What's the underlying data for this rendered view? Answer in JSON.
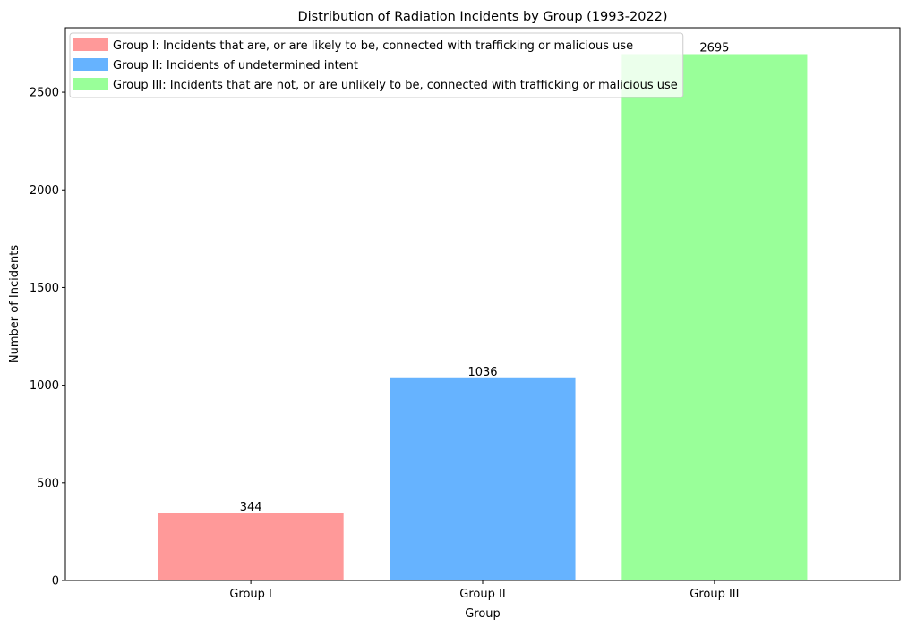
{
  "chart_data": {
    "type": "bar",
    "title": "Distribution of Radiation Incidents by Group (1993-2022)",
    "xlabel": "Group",
    "ylabel": "Number of Incidents",
    "categories": [
      "Group I",
      "Group II",
      "Group III"
    ],
    "values": [
      344,
      1036,
      2695
    ],
    "value_labels": [
      "344",
      "1036",
      "2695"
    ],
    "colors": [
      "#ff9999",
      "#66b3ff",
      "#99ff99"
    ],
    "ylim": [
      0,
      2830
    ],
    "yticks": [
      0,
      500,
      1000,
      1500,
      2000,
      2500
    ],
    "grid": false,
    "legend_position": "top-left",
    "legend": [
      {
        "label": "Group I: Incidents that are, or are likely to be, connected with trafficking or malicious use",
        "color": "#ff9999"
      },
      {
        "label": "Group II: Incidents of undetermined intent",
        "color": "#66b3ff"
      },
      {
        "label": "Group III: Incidents that are not, or are unlikely to be, connected with trafficking or malicious use",
        "color": "#99ff99"
      }
    ]
  }
}
